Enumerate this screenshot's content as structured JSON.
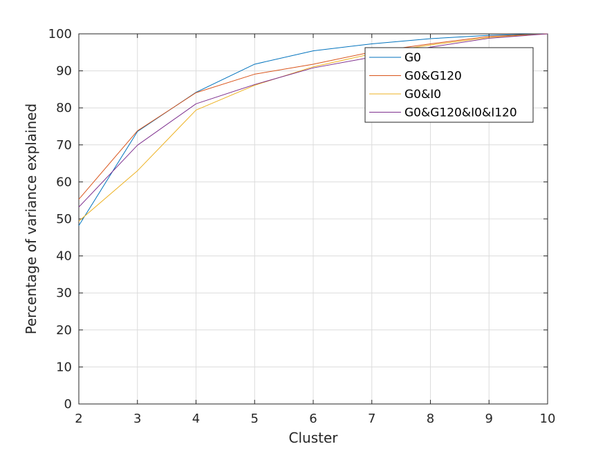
{
  "chart_data": {
    "type": "line",
    "title": "",
    "xlabel": "Cluster",
    "ylabel": "Percentage of variance explained",
    "xlim": [
      2,
      10
    ],
    "ylim": [
      0,
      100
    ],
    "x_ticks": [
      2,
      3,
      4,
      5,
      6,
      7,
      8,
      9,
      10
    ],
    "y_ticks": [
      0,
      10,
      20,
      30,
      40,
      50,
      60,
      70,
      80,
      90,
      100
    ],
    "grid": true,
    "legend_position": "top-right",
    "x": [
      2,
      3,
      4,
      5,
      6,
      7,
      8,
      9,
      10
    ],
    "series": [
      {
        "name": "G0",
        "color": "#0072bd",
        "values": [
          48.2,
          73.6,
          84.2,
          91.8,
          95.4,
          97.3,
          98.7,
          99.6,
          100
        ]
      },
      {
        "name": "G0&G120",
        "color": "#d95319",
        "values": [
          55.3,
          73.8,
          84.1,
          89.1,
          91.8,
          95.1,
          97.3,
          99.3,
          100
        ]
      },
      {
        "name": "G0&I0",
        "color": "#edb120",
        "values": [
          49.4,
          63.0,
          79.4,
          86.1,
          91.1,
          94.6,
          97.0,
          99.0,
          100
        ]
      },
      {
        "name": "G0&G120&I0&I120",
        "color": "#7e2f8e",
        "values": [
          53.2,
          69.9,
          81.1,
          86.3,
          90.8,
          93.7,
          96.4,
          98.8,
          100
        ]
      }
    ]
  }
}
